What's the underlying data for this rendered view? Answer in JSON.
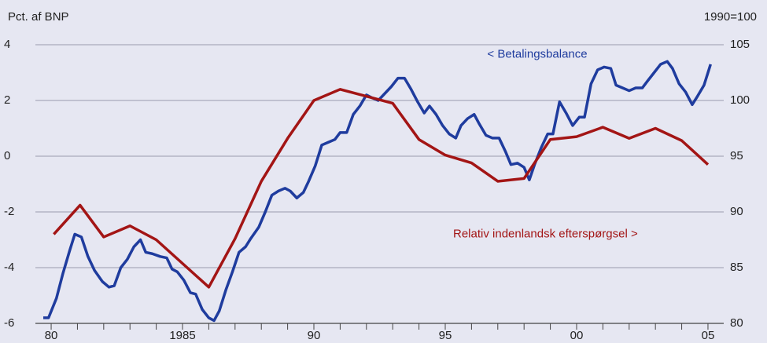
{
  "chart_data": {
    "type": "line",
    "y_label": "Pct. af BNP",
    "y2_label": "1990=100",
    "annotations": [
      {
        "text": "< Betalingsbalance",
        "x": 1996.6,
        "y": 3.65,
        "color": "#1f3c9e"
      },
      {
        "text": "Relativ indenlandsk efterspørgsel >",
        "x": 1995.3,
        "y": -2.8,
        "color": "#a31515"
      }
    ],
    "xlim": [
      1979.4,
      2005.6
    ],
    "ylim": [
      -6,
      4
    ],
    "y2lim": [
      80,
      105
    ],
    "xticks": [
      {
        "value": 1980,
        "label": "80"
      },
      1985,
      {
        "value": 1990,
        "label": "90"
      },
      {
        "value": 1995,
        "label": "95"
      },
      {
        "value": 2000,
        "label": "00"
      },
      {
        "value": 2005,
        "label": "05"
      }
    ],
    "xminorticks": [
      1981,
      1982,
      1983,
      1984,
      1986,
      1987,
      1988,
      1989,
      1991,
      1992,
      1993,
      1994,
      1996,
      1997,
      1998,
      1999,
      2001,
      2002,
      2003,
      2004
    ],
    "yticks": [
      -6,
      -4,
      -2,
      0,
      2,
      4
    ],
    "y2ticks": [
      80,
      85,
      90,
      95,
      100,
      105
    ],
    "grid": true,
    "series": [
      {
        "name": "Betalingsbalance",
        "color": "#1f3c9e",
        "axis": "y",
        "x": [
          1979.7,
          1979.9,
          1980.2,
          1980.45,
          1980.7,
          1980.9,
          1981.15,
          1981.4,
          1981.65,
          1981.95,
          1982.2,
          1982.4,
          1982.65,
          1982.9,
          1983.15,
          1983.4,
          1983.6,
          1983.85,
          1984.15,
          1984.4,
          1984.6,
          1984.8,
          1985.05,
          1985.3,
          1985.5,
          1985.75,
          1986.0,
          1986.2,
          1986.4,
          1986.65,
          1986.9,
          1987.15,
          1987.4,
          1987.6,
          1987.9,
          1988.15,
          1988.4,
          1988.65,
          1988.9,
          1989.1,
          1989.35,
          1989.6,
          1989.8,
          1990.05,
          1990.3,
          1990.55,
          1990.8,
          1991.0,
          1991.25,
          1991.5,
          1991.75,
          1992.0,
          1992.2,
          1992.45,
          1992.7,
          1992.95,
          1993.2,
          1993.45,
          1993.7,
          1993.95,
          1994.2,
          1994.4,
          1994.65,
          1994.9,
          1995.15,
          1995.4,
          1995.6,
          1995.85,
          1996.1,
          1996.3,
          1996.55,
          1996.8,
          1997.05,
          1997.3,
          1997.5,
          1997.75,
          1998.0,
          1998.2,
          1998.4,
          1998.65,
          1998.9,
          1999.1,
          1999.35,
          1999.6,
          1999.85,
          2000.1,
          2000.3,
          2000.55,
          2000.8,
          2001.05,
          2001.3,
          2001.5,
          2001.75,
          2002.0,
          2002.25,
          2002.5,
          2002.7,
          2002.95,
          2003.2,
          2003.45,
          2003.65,
          2003.9,
          2004.15,
          2004.4,
          2004.6,
          2004.85,
          2005.1
        ],
        "values": [
          -5.8,
          -5.8,
          -5.1,
          -4.2,
          -3.4,
          -2.8,
          -2.9,
          -3.6,
          -4.1,
          -4.5,
          -4.7,
          -4.65,
          -4.0,
          -3.7,
          -3.25,
          -3.0,
          -3.45,
          -3.5,
          -3.6,
          -3.65,
          -4.05,
          -4.15,
          -4.45,
          -4.9,
          -4.95,
          -5.5,
          -5.8,
          -5.9,
          -5.55,
          -4.8,
          -4.15,
          -3.45,
          -3.25,
          -2.95,
          -2.55,
          -2.0,
          -1.4,
          -1.25,
          -1.15,
          -1.25,
          -1.5,
          -1.3,
          -0.9,
          -0.35,
          0.4,
          0.5,
          0.6,
          0.85,
          0.85,
          1.5,
          1.8,
          2.2,
          2.1,
          2.0,
          2.25,
          2.5,
          2.8,
          2.8,
          2.4,
          1.95,
          1.55,
          1.8,
          1.5,
          1.1,
          0.8,
          0.65,
          1.1,
          1.35,
          1.5,
          1.15,
          0.75,
          0.65,
          0.65,
          0.15,
          -0.3,
          -0.25,
          -0.4,
          -0.85,
          -0.3,
          0.3,
          0.8,
          0.8,
          1.95,
          1.55,
          1.1,
          1.4,
          1.4,
          2.6,
          3.1,
          3.2,
          3.15,
          2.55,
          2.45,
          2.35,
          2.45,
          2.45,
          2.7,
          3.0,
          3.3,
          3.4,
          3.15,
          2.6,
          2.3,
          1.85,
          2.15,
          2.55,
          3.3
        ]
      },
      {
        "name": "Relativ indenlandsk efterspørgsel",
        "color": "#a31515",
        "axis": "y2",
        "x": [
          1980.1,
          1981.1,
          1982.0,
          1983.0,
          1984.0,
          1986.0,
          1987.0,
          1988.0,
          1989.0,
          1990.0,
          1991.0,
          1993.0,
          1994.0,
          1995.0,
          1996.0,
          1997.0,
          1998.0,
          1999.0,
          2000.0,
          2001.0,
          2002.0,
          2003.0,
          2004.0,
          2005.0
        ],
        "values": [
          88.0,
          90.6,
          87.75,
          88.75,
          87.5,
          83.25,
          87.6,
          92.75,
          96.6,
          100,
          101,
          99.75,
          96.5,
          95.1,
          94.4,
          92.75,
          93.0,
          96.5,
          96.75,
          97.6,
          96.6,
          97.5,
          96.4,
          94.25
        ]
      }
    ]
  }
}
